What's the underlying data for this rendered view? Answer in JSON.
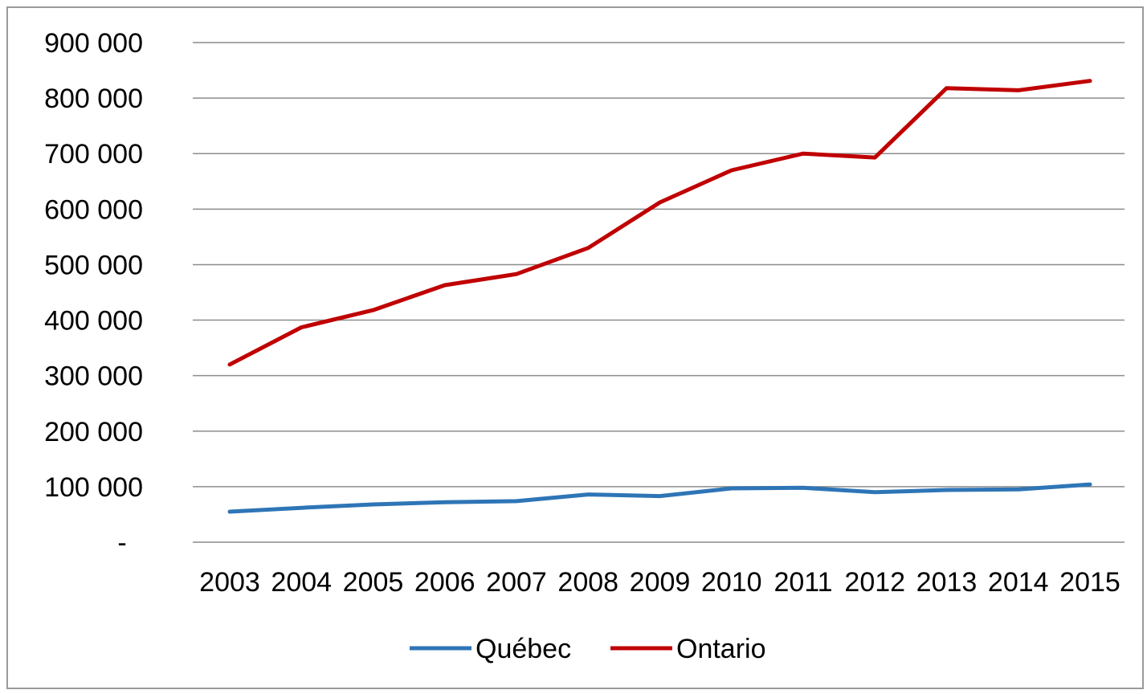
{
  "chart_data": {
    "type": "line",
    "title": "",
    "xlabel": "",
    "ylabel": "",
    "x": [
      "2003",
      "2004",
      "2005",
      "2006",
      "2007",
      "2008",
      "2009",
      "2010",
      "2011",
      "2012",
      "2013",
      "2014",
      "2015"
    ],
    "ylim": [
      0,
      900000
    ],
    "yticks": [
      0,
      100000,
      200000,
      300000,
      400000,
      500000,
      600000,
      700000,
      800000,
      900000
    ],
    "ytick_labels": [
      "-",
      "100 000",
      "200 000",
      "300 000",
      "400 000",
      "500 000",
      "600 000",
      "700 000",
      "800 000",
      "900 000"
    ],
    "grid": "horizontal",
    "legend_position": "bottom",
    "series": [
      {
        "name": "Québec",
        "color": "#2e75b6",
        "values": [
          55000,
          62000,
          68000,
          72000,
          74000,
          86000,
          83000,
          97000,
          98000,
          90000,
          94000,
          95000,
          104000
        ]
      },
      {
        "name": "Ontario",
        "color": "#c00000",
        "values": [
          320000,
          387000,
          418000,
          463000,
          483000,
          530000,
          612000,
          670000,
          700000,
          693000,
          818000,
          814000,
          831000
        ]
      }
    ]
  }
}
